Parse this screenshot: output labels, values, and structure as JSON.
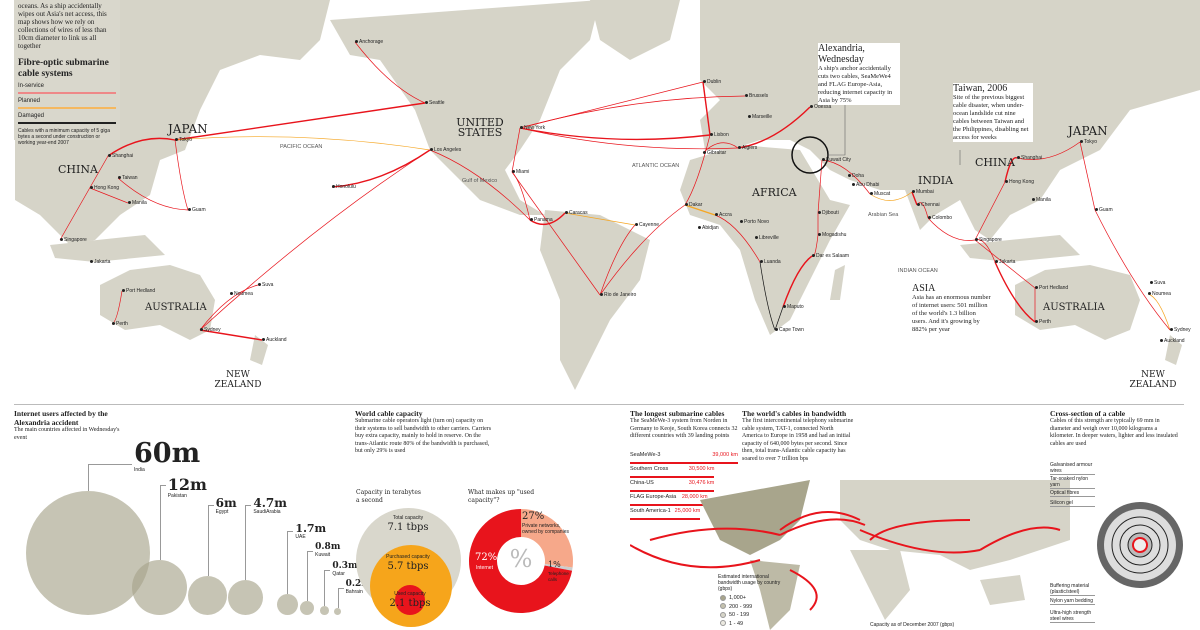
{
  "intro": {
    "text": "oceans. As a ship accidentally wipes out Asia's net access, this map shows how we rely on collections of wires of less than 10cm diameter to link us all together",
    "legend_title": "Fibre-optic submarine cable systems",
    "legend": [
      "In-service",
      "Planned",
      "Damaged"
    ],
    "note": "Cables with a minimum capacity of 5 giga bytes a second under construction or working year-end 2007"
  },
  "colors": {
    "cable": "#e8141c",
    "planned": "#f5a623",
    "damaged": "#111111",
    "land": "#d6d4c8",
    "panel": "#d9d7cc"
  },
  "regions": [
    "JAPAN",
    "CHINA",
    "AUSTRALIA",
    "NEW ZEALAND",
    "UNITED STATES",
    "AFRICA",
    "INDIA",
    "CHINA",
    "JAPAN",
    "AUSTRALIA",
    "NEW ZEALAND"
  ],
  "oceans": [
    "PACIFIC OCEAN",
    "ATLANTIC OCEAN",
    "INDIAN OCEAN",
    "Gulf of Mexico",
    "Arabian Sea"
  ],
  "cities": [
    "Anchorage",
    "Seattle",
    "Los Angeles",
    "New York",
    "Miami",
    "Panama",
    "Caracas",
    "Cayenne",
    "Rio de Janeiro",
    "Dakar",
    "Accra",
    "Abidjan",
    "Porto Novo",
    "Libreville",
    "Luanda",
    "Cape Town",
    "Maputo",
    "Dar es Salaam",
    "Mogadishu",
    "Djibouti",
    "Lisbon",
    "Gibraltar",
    "Algiers",
    "Marseille",
    "Brussels",
    "Dublin",
    "Odessa",
    "Kuwait City",
    "Doha",
    "Abu Dhabi",
    "Muscat",
    "Mumbai",
    "Chennai",
    "Colombo",
    "Singapore",
    "Hong Kong",
    "Shanghai",
    "Tokyo",
    "Manila",
    "Guam",
    "Jakarta",
    "Sydney",
    "Perth",
    "Port Hedland",
    "Noumea",
    "Shanghai",
    "Taiwan",
    "Hong Kong",
    "Manila",
    "Guam",
    "Singapore",
    "Jakarta",
    "Port Hedland",
    "Perth",
    "Sydney",
    "Auckland",
    "Noumea",
    "Suva",
    "Honolulu",
    "Tokyo",
    "Auckland",
    "Suva"
  ],
  "callouts": {
    "alex": {
      "title": "Alexandria, Wednesday",
      "text": "A ship's anchor accidentally cuts two cables, SeaMeWe4 and FLAG Europe-Asia, reducing internet capacity in Asia by 75%"
    },
    "taiwan": {
      "title": "Taiwan, 2006",
      "text": "Site of the previous biggest cable disaster, when under-ocean landslide cut nine cables between Taiwan and the Philippines, disabling net access for weeks"
    },
    "asia": {
      "title": "ASIA",
      "text": "Asia has an enormous number of internet users: 501 million of the world's 1.3 billion users. And it's growing by 882% per year"
    }
  },
  "users": {
    "title": "Internet users affected by the Alexandria accident",
    "subtitle": "The main countries affected in Wednesday's event",
    "items": [
      {
        "value": "60m",
        "country": "India",
        "millions": 60
      },
      {
        "value": "12m",
        "country": "Pakistan",
        "millions": 12
      },
      {
        "value": "6m",
        "country": "Egypt",
        "millions": 6
      },
      {
        "value": "4.7m",
        "country": "SaudiArabia",
        "millions": 4.7
      },
      {
        "value": "1.7m",
        "country": "UAE",
        "millions": 1.7
      },
      {
        "value": "0.8m",
        "country": "Kuwait",
        "millions": 0.8
      },
      {
        "value": "0.3m",
        "country": "Qatar",
        "millions": 0.3
      },
      {
        "value": "0.2m",
        "country": "Bahrain",
        "millions": 0.2
      }
    ]
  },
  "capacity": {
    "title": "World cable capacity",
    "text": "Submarine cable operators light (turn on) capacity on their systems to sell bandwidth to other carriers. Carriers buy extra capacity, mainly to hold in reserve. On the trans-Atlantic route 80% of the bandwidth is purchased, but only 29% is used",
    "left_title": "Capacity in terabytes a second",
    "total_label": "Total capacity",
    "total": "7.1 tbps",
    "purchased_label": "Purchased capacity",
    "purchased": "5.7 tbps",
    "used_label": "Used capacity",
    "used": "2.1 tbps",
    "right_title": "What makes up \"used capacity\"?",
    "symbol": "%",
    "donut": [
      {
        "pct": "72%",
        "label": "Internet",
        "value": 72,
        "color": "#e8141c"
      },
      {
        "pct": "27%",
        "label": "Private networks, owned by companies",
        "value": 27,
        "color": "#f6a88a"
      },
      {
        "pct": "1%",
        "label": "Telephone calls",
        "value": 1,
        "color": "#cccccc"
      }
    ]
  },
  "longest": {
    "title": "The longest submarine cables",
    "text": "The SeaMeWe-3 system from Norden in Germany to Keoje, South Korea connects 32 different countries with 39 landing points",
    "cables": [
      {
        "name": "SeaMeWe-3",
        "length": "39,000 km",
        "km": 39000
      },
      {
        "name": "Southern Cross",
        "length": "30,500 km",
        "km": 30500
      },
      {
        "name": "China-US",
        "length": "30,476 km",
        "km": 30476
      },
      {
        "name": "FLAG Europe-Asia",
        "length": "28,000 km",
        "km": 28000
      },
      {
        "name": "South America-1",
        "length": "25,000 km",
        "km": 25000
      }
    ]
  },
  "bandwidth": {
    "title": "The world's cables in bandwidth",
    "text": "The first intercontinental telephony submarine cable system, TAT-1, connected North America to Europe in 1958 and had an initial capacity of 640,000 bytes per second. Since then, total trans-Atlantic cable capacity has soared to over 7 trillion bps",
    "legend_title": "Estimated international bandwidth usage by country (gbps)",
    "legend": [
      "1,000+",
      "200 - 999",
      "50 - 199",
      "1 - 49"
    ],
    "caption": "Capacity as of December 2007 (gbps)"
  },
  "cross": {
    "title": "Cross-section of a cable",
    "text": "Cables of this strength are typically 69 mm in diameter and weigh over 10,000 kilograms a kilometer. In deeper waters, lighter and less insulated cables are used",
    "labels": [
      "Galvanised armour wires",
      "Tar-soaked nylon yarn",
      "Optical fibres",
      "Silicon gel",
      "Buffering material (plastic/steel)",
      "Nylon yarn bedding",
      "Ultra-high strength steel wires"
    ]
  }
}
